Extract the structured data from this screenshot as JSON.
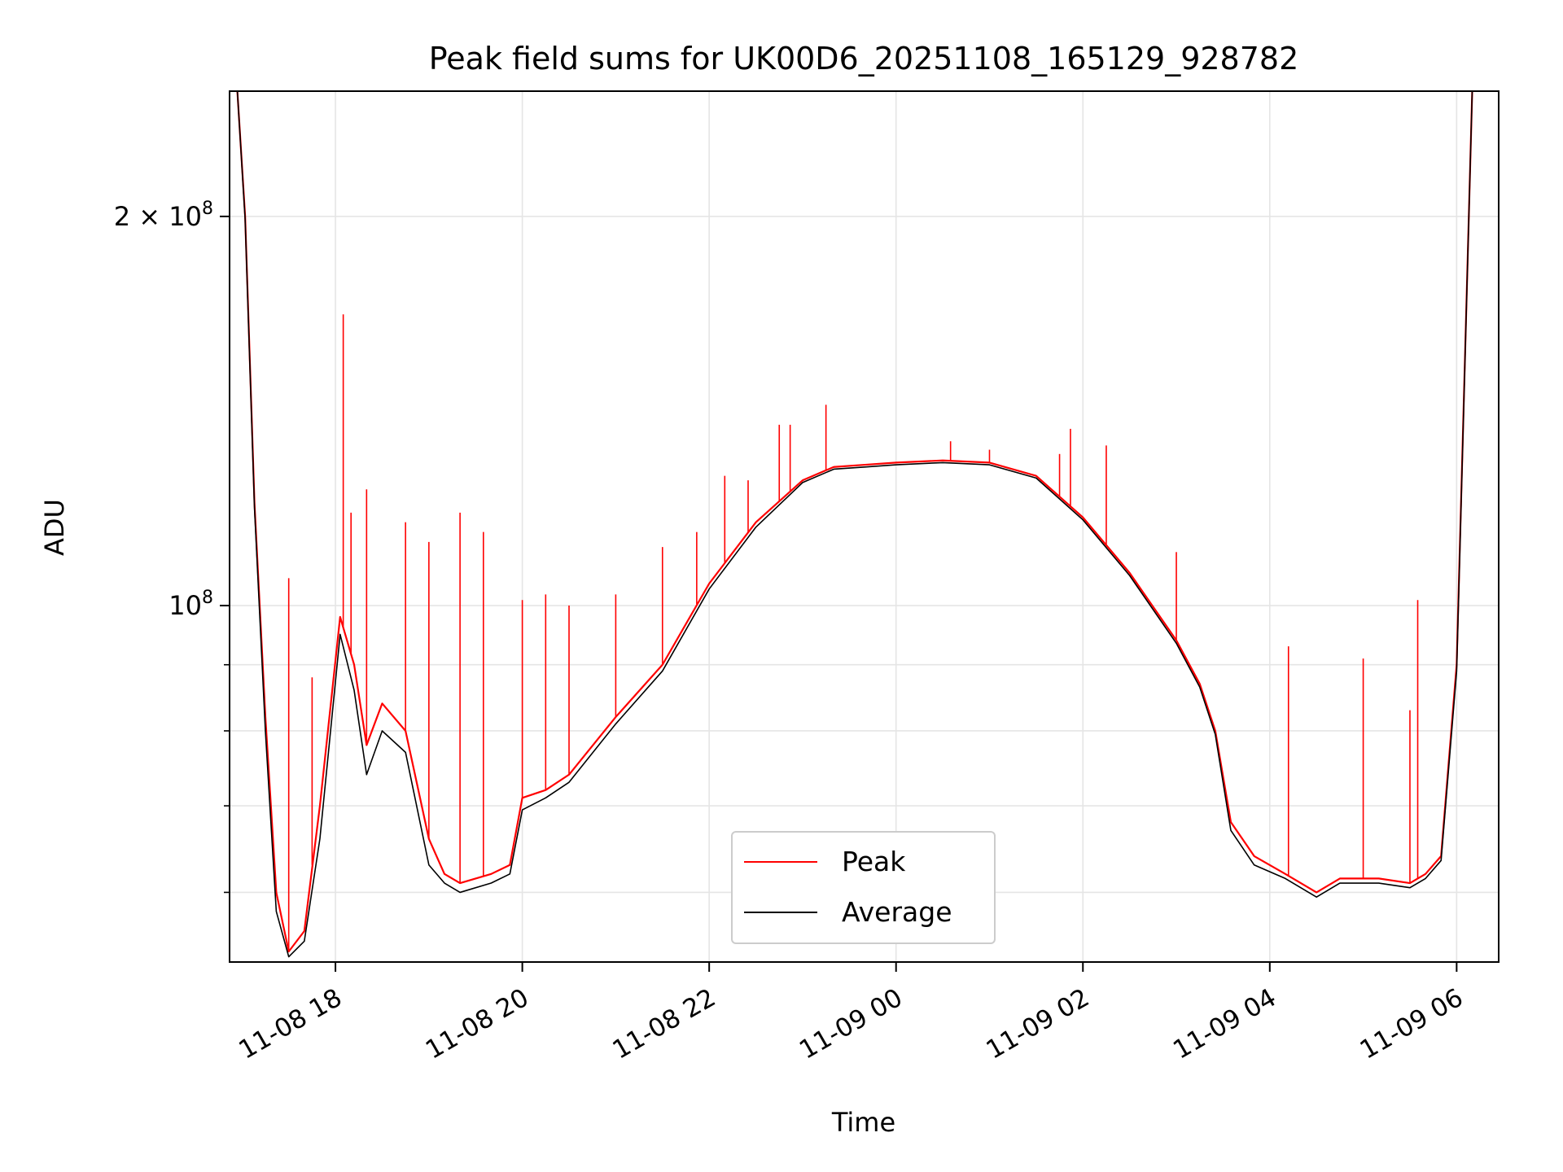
{
  "chart_data": {
    "type": "line",
    "title": "Peak field sums for UK00D6_20251108_165129_928782",
    "xlabel": "Time",
    "ylabel": "ADU",
    "y_scale": "log",
    "ylim": [
      53000000,
      250000000
    ],
    "xlim": [
      "2025-11-08 16:52",
      "2025-11-09 06:27"
    ],
    "grid": true,
    "legend_position": "lower center",
    "x_ticks": [
      {
        "t": "2025-11-08 18:00",
        "label": "11-08 18"
      },
      {
        "t": "2025-11-08 20:00",
        "label": "11-08 20"
      },
      {
        "t": "2025-11-08 22:00",
        "label": "11-08 22"
      },
      {
        "t": "2025-11-09 00:00",
        "label": "11-09 00"
      },
      {
        "t": "2025-11-09 02:00",
        "label": "11-09 02"
      },
      {
        "t": "2025-11-09 04:00",
        "label": "11-09 04"
      },
      {
        "t": "2025-11-09 06:00",
        "label": "11-09 06"
      }
    ],
    "y_ticks_major": [
      {
        "value": 100000000,
        "base": "10",
        "exp": "8",
        "coef": ""
      },
      {
        "value": 200000000,
        "base": "10",
        "exp": "8",
        "coef": "2"
      }
    ],
    "y_ticks_minor": [
      60000000,
      70000000,
      80000000,
      90000000
    ],
    "series": [
      {
        "name": "Peak",
        "color": "#ff0000",
        "x": [
          "2025-11-08 16:57",
          "2025-11-08 17:02",
          "2025-11-08 17:08",
          "2025-11-08 17:15",
          "2025-11-08 17:22",
          "2025-11-08 17:30",
          "2025-11-08 17:40",
          "2025-11-08 17:50",
          "2025-11-08 18:03",
          "2025-11-08 18:12",
          "2025-11-08 18:20",
          "2025-11-08 18:30",
          "2025-11-08 18:45",
          "2025-11-08 19:00",
          "2025-11-08 19:10",
          "2025-11-08 19:20",
          "2025-11-08 19:40",
          "2025-11-08 19:52",
          "2025-11-08 20:00",
          "2025-11-08 20:15",
          "2025-11-08 20:30",
          "2025-11-08 21:00",
          "2025-11-08 21:30",
          "2025-11-08 22:00",
          "2025-11-08 22:30",
          "2025-11-08 23:00",
          "2025-11-08 23:20",
          "2025-11-08 23:40",
          "2025-11-09 00:00",
          "2025-11-09 00:30",
          "2025-11-09 01:00",
          "2025-11-09 01:30",
          "2025-11-09 02:00",
          "2025-11-09 02:30",
          "2025-11-09 03:00",
          "2025-11-09 03:15",
          "2025-11-09 03:25",
          "2025-11-09 03:35",
          "2025-11-09 03:50",
          "2025-11-09 04:10",
          "2025-11-09 04:30",
          "2025-11-09 04:45",
          "2025-11-09 05:10",
          "2025-11-09 05:30",
          "2025-11-09 05:40",
          "2025-11-09 05:50",
          "2025-11-09 06:00",
          "2025-11-09 06:10"
        ],
        "values": [
          250000000,
          200000000,
          120000000,
          82000000,
          60000000,
          54000000,
          56000000,
          70000000,
          98000000,
          90000000,
          78000000,
          84000000,
          80000000,
          66000000,
          62000000,
          61000000,
          62000000,
          63000000,
          71000000,
          72000000,
          74000000,
          82000000,
          90000000,
          104000000,
          116000000,
          125000000,
          128000000,
          128500000,
          129000000,
          129500000,
          129000000,
          126000000,
          117000000,
          106000000,
          94000000,
          87000000,
          80000000,
          68000000,
          64000000,
          62000000,
          60000000,
          61500000,
          61500000,
          61000000,
          62000000,
          64000000,
          90000000,
          250000000
        ]
      },
      {
        "name": "Average",
        "color": "#000000",
        "x": [
          "2025-11-08 16:57",
          "2025-11-08 17:02",
          "2025-11-08 17:08",
          "2025-11-08 17:15",
          "2025-11-08 17:22",
          "2025-11-08 17:30",
          "2025-11-08 17:40",
          "2025-11-08 17:50",
          "2025-11-08 18:03",
          "2025-11-08 18:12",
          "2025-11-08 18:20",
          "2025-11-08 18:30",
          "2025-11-08 18:45",
          "2025-11-08 19:00",
          "2025-11-08 19:10",
          "2025-11-08 19:20",
          "2025-11-08 19:40",
          "2025-11-08 19:52",
          "2025-11-08 20:00",
          "2025-11-08 20:15",
          "2025-11-08 20:30",
          "2025-11-08 21:00",
          "2025-11-08 21:30",
          "2025-11-08 22:00",
          "2025-11-08 22:30",
          "2025-11-08 23:00",
          "2025-11-08 23:20",
          "2025-11-08 23:40",
          "2025-11-09 00:00",
          "2025-11-09 00:30",
          "2025-11-09 01:00",
          "2025-11-09 01:30",
          "2025-11-09 02:00",
          "2025-11-09 02:30",
          "2025-11-09 03:00",
          "2025-11-09 03:15",
          "2025-11-09 03:25",
          "2025-11-09 03:35",
          "2025-11-09 03:50",
          "2025-11-09 04:10",
          "2025-11-09 04:30",
          "2025-11-09 04:45",
          "2025-11-09 05:10",
          "2025-11-09 05:30",
          "2025-11-09 05:40",
          "2025-11-09 05:50",
          "2025-11-09 06:00",
          "2025-11-09 06:10"
        ],
        "values": [
          250000000,
          199000000,
          119000000,
          80000000,
          58000000,
          53500000,
          55000000,
          66000000,
          95000000,
          86000000,
          74000000,
          80000000,
          77000000,
          63000000,
          61000000,
          60000000,
          61000000,
          62000000,
          69500000,
          71000000,
          73000000,
          81000000,
          89000000,
          103000000,
          115000000,
          124500000,
          127500000,
          128000000,
          128500000,
          129000000,
          128500000,
          125500000,
          116500000,
          105500000,
          93500000,
          86500000,
          79500000,
          67000000,
          63000000,
          61500000,
          59500000,
          61000000,
          61000000,
          60500000,
          61500000,
          63500000,
          89000000,
          250000000
        ]
      }
    ],
    "peak_spikes": [
      {
        "t": "2025-11-08 17:30",
        "value": 105000000
      },
      {
        "t": "2025-11-08 17:45",
        "value": 88000000
      },
      {
        "t": "2025-11-08 18:05",
        "value": 168000000
      },
      {
        "t": "2025-11-08 18:10",
        "value": 118000000
      },
      {
        "t": "2025-11-08 18:20",
        "value": 123000000
      },
      {
        "t": "2025-11-08 18:45",
        "value": 116000000
      },
      {
        "t": "2025-11-08 19:00",
        "value": 112000000
      },
      {
        "t": "2025-11-08 19:20",
        "value": 118000000
      },
      {
        "t": "2025-11-08 19:35",
        "value": 114000000
      },
      {
        "t": "2025-11-08 20:00",
        "value": 101000000
      },
      {
        "t": "2025-11-08 20:15",
        "value": 102000000
      },
      {
        "t": "2025-11-08 20:30",
        "value": 100000000
      },
      {
        "t": "2025-11-08 21:00",
        "value": 102000000
      },
      {
        "t": "2025-11-08 21:30",
        "value": 111000000
      },
      {
        "t": "2025-11-08 21:52",
        "value": 114000000
      },
      {
        "t": "2025-11-08 22:10",
        "value": 126000000
      },
      {
        "t": "2025-11-08 22:25",
        "value": 125000000
      },
      {
        "t": "2025-11-08 22:45",
        "value": 138000000
      },
      {
        "t": "2025-11-08 22:52",
        "value": 138000000
      },
      {
        "t": "2025-11-08 23:15",
        "value": 143000000
      },
      {
        "t": "2025-11-09 00:35",
        "value": 134000000
      },
      {
        "t": "2025-11-09 01:00",
        "value": 132000000
      },
      {
        "t": "2025-11-09 01:45",
        "value": 131000000
      },
      {
        "t": "2025-11-09 01:52",
        "value": 137000000
      },
      {
        "t": "2025-11-09 02:15",
        "value": 133000000
      },
      {
        "t": "2025-11-09 03:00",
        "value": 110000000
      },
      {
        "t": "2025-11-09 04:12",
        "value": 93000000
      },
      {
        "t": "2025-11-09 05:00",
        "value": 91000000
      },
      {
        "t": "2025-11-09 05:30",
        "value": 83000000
      },
      {
        "t": "2025-11-09 05:35",
        "value": 101000000
      }
    ]
  }
}
